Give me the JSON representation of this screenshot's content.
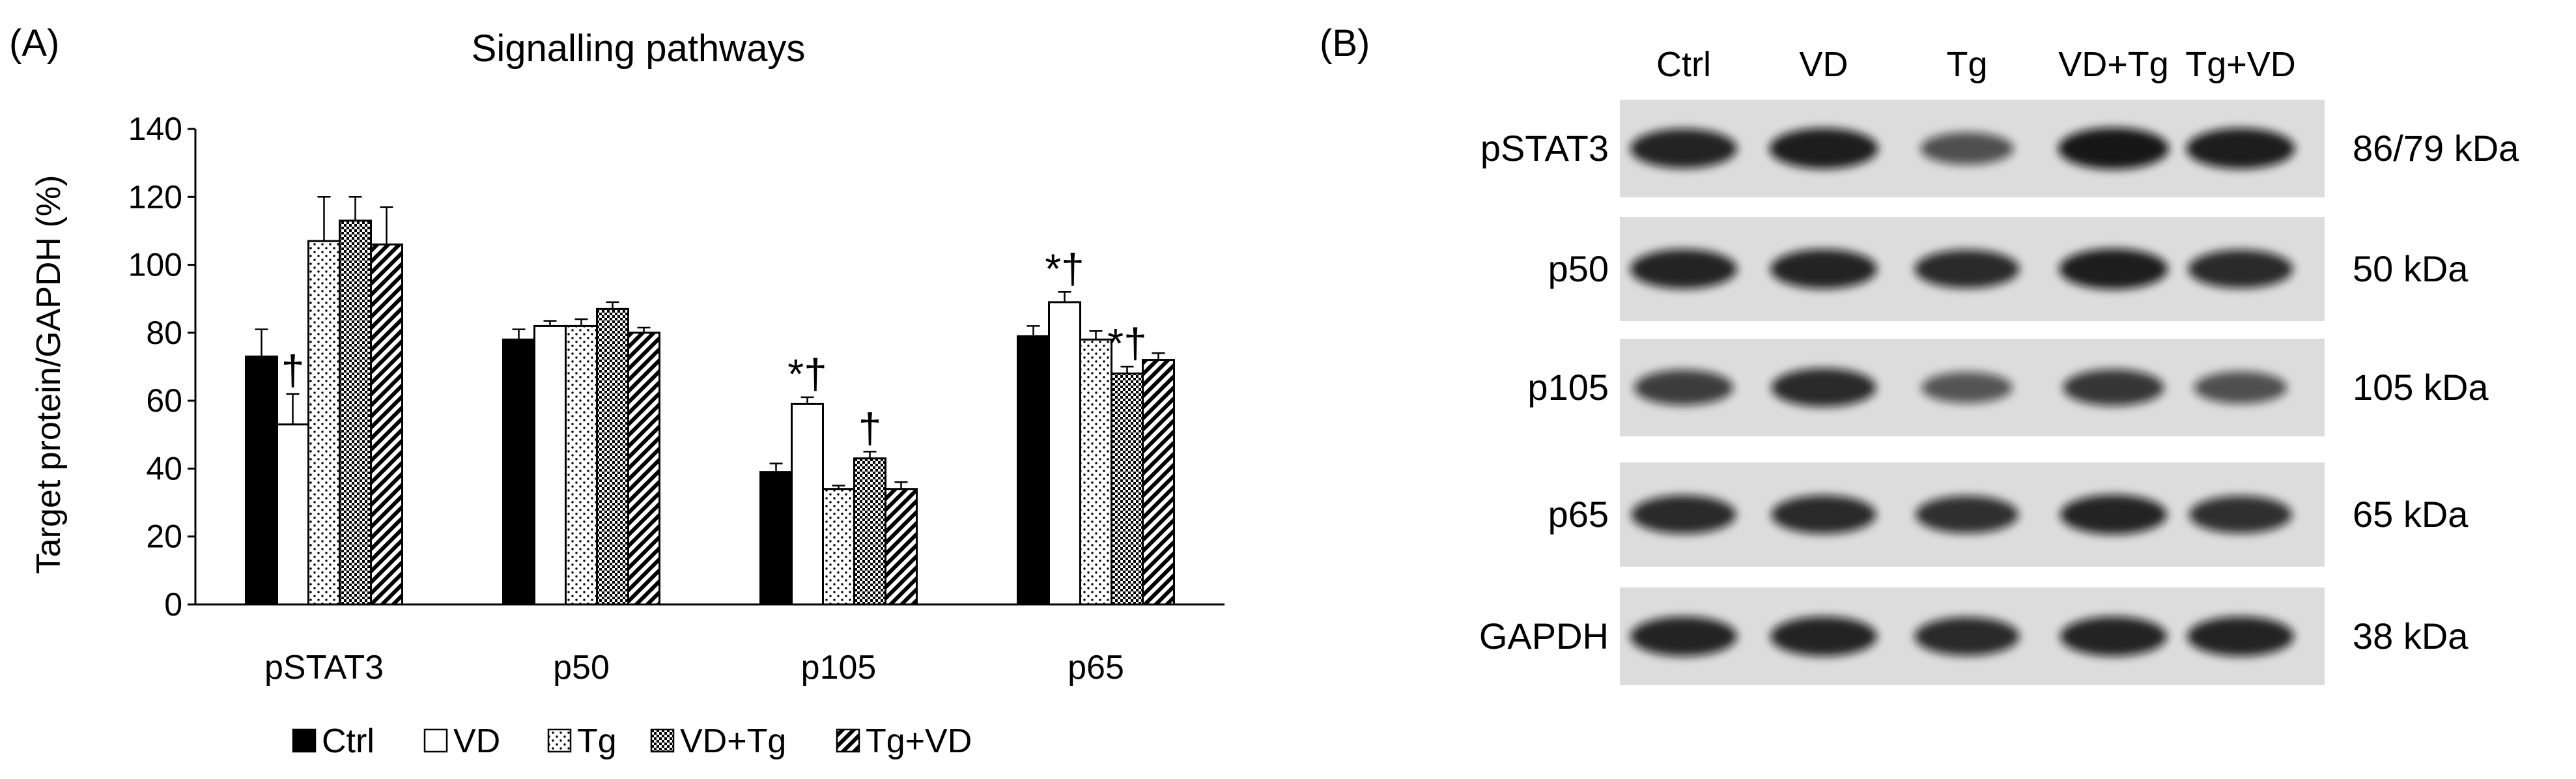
{
  "panel_a_label": "(A)",
  "panel_b_label": "(B)",
  "chart_data": {
    "type": "bar",
    "title": "Signalling pathways",
    "xlabel": "",
    "ylabel": "Target protein/GAPDH (%)",
    "ylim": [
      0,
      140
    ],
    "yticks": [
      0,
      20,
      40,
      60,
      80,
      100,
      120,
      140
    ],
    "categories": [
      "pSTAT3",
      "p50",
      "p105",
      "p65"
    ],
    "legend_position": "bottom",
    "series": [
      {
        "name": "Ctrl",
        "pattern": "solid",
        "values": [
          73,
          78,
          39,
          79
        ],
        "errors": [
          8,
          3,
          2.5,
          3
        ]
      },
      {
        "name": "VD",
        "pattern": "white",
        "values": [
          53,
          82,
          59,
          89
        ],
        "errors": [
          9,
          1.5,
          2,
          3
        ]
      },
      {
        "name": "Tg",
        "pattern": "dots",
        "values": [
          107,
          82,
          34,
          78
        ],
        "errors": [
          13,
          2,
          1,
          2.5
        ]
      },
      {
        "name": "VD+Tg",
        "pattern": "dense",
        "values": [
          113,
          87,
          43,
          68
        ],
        "errors": [
          7,
          2,
          2,
          2
        ]
      },
      {
        "name": "Tg+VD",
        "pattern": "diagonal",
        "values": [
          106,
          80,
          34,
          72
        ],
        "errors": [
          11,
          1.5,
          2,
          2
        ]
      }
    ],
    "annotations": [
      {
        "category": "pSTAT3",
        "series": "VD",
        "text": "†"
      },
      {
        "category": "p105",
        "series": "VD",
        "text": "*†"
      },
      {
        "category": "p105",
        "series": "VD+Tg",
        "text": "†"
      },
      {
        "category": "p65",
        "series": "VD",
        "text": "*†"
      },
      {
        "category": "p65",
        "series": "VD+Tg",
        "text": "*†"
      }
    ]
  },
  "blot": {
    "lanes": [
      "Ctrl",
      "VD",
      "Tg",
      "VD+Tg",
      "Tg+VD"
    ],
    "rows": [
      {
        "protein": "pSTAT3",
        "size": "86/79 kDa",
        "intensity": [
          0.9,
          0.95,
          0.55,
          1.0,
          0.95
        ]
      },
      {
        "protein": "p50",
        "size": "50 kDa",
        "intensity": [
          0.9,
          0.9,
          0.85,
          0.95,
          0.85
        ]
      },
      {
        "protein": "p105",
        "size": "105 kDa",
        "intensity": [
          0.7,
          0.85,
          0.5,
          0.75,
          0.55
        ]
      },
      {
        "protein": "p65",
        "size": "65 kDa",
        "intensity": [
          0.85,
          0.85,
          0.8,
          0.9,
          0.8
        ]
      },
      {
        "protein": "GAPDH",
        "size": "38 kDa",
        "intensity": [
          0.9,
          0.9,
          0.85,
          0.9,
          0.9
        ]
      }
    ]
  }
}
